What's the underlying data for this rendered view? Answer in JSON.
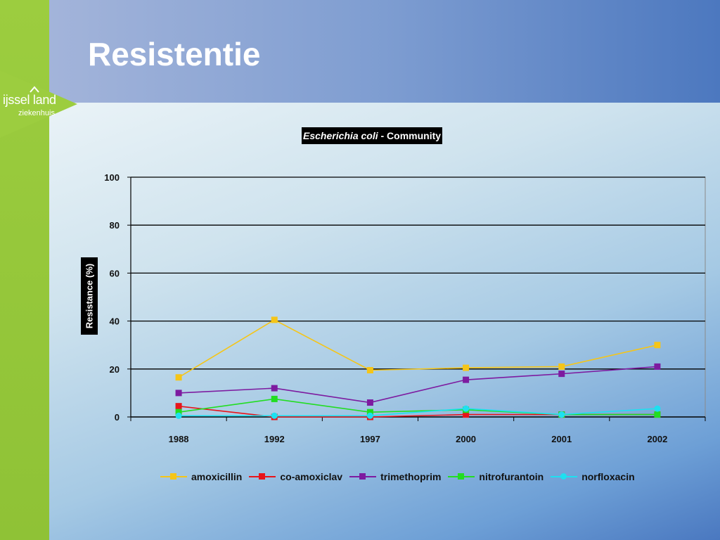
{
  "slide": {
    "title": "Resistentie",
    "logo": {
      "main": "ijssel land",
      "sub": "ziekenhuis"
    }
  },
  "colors": {
    "green_strip": "#9ccd3f",
    "amoxicillin": "#f5c518",
    "co_amoxiclav": "#e8141a",
    "trimethoprim": "#7d1ba0",
    "nitrofurantoin": "#22dd22",
    "norfloxacin": "#1ee0f0"
  },
  "chart_data": {
    "type": "line",
    "title_italic": "Escherichia coli",
    "title_rest": " - Community",
    "ylabel": "Resistance (%)",
    "xlabel": "",
    "categories": [
      "1988",
      "1992",
      "1997",
      "2000",
      "2001",
      "2002"
    ],
    "ylim": [
      0,
      100
    ],
    "yticks": [
      0,
      20,
      40,
      60,
      80,
      100
    ],
    "grid": true,
    "legend_position": "bottom",
    "series": [
      {
        "name": "amoxicillin",
        "color": "#f5c518",
        "marker": "square",
        "values": [
          16.5,
          40.5,
          19.5,
          20.5,
          21,
          30
        ]
      },
      {
        "name": "co-amoxiclav",
        "color": "#e8141a",
        "marker": "square",
        "values": [
          4.5,
          0,
          0,
          1,
          1,
          1
        ]
      },
      {
        "name": "trimethoprim",
        "color": "#7d1ba0",
        "marker": "square",
        "values": [
          10,
          12,
          6,
          15.5,
          18,
          21
        ]
      },
      {
        "name": "nitrofurantoin",
        "color": "#22dd22",
        "marker": "square",
        "values": [
          2,
          7.5,
          2,
          3,
          1,
          1
        ]
      },
      {
        "name": "norfloxacin",
        "color": "#1ee0f0",
        "marker": "circle",
        "values": [
          0.5,
          0.5,
          0.5,
          3.5,
          1,
          3.5
        ]
      }
    ]
  }
}
